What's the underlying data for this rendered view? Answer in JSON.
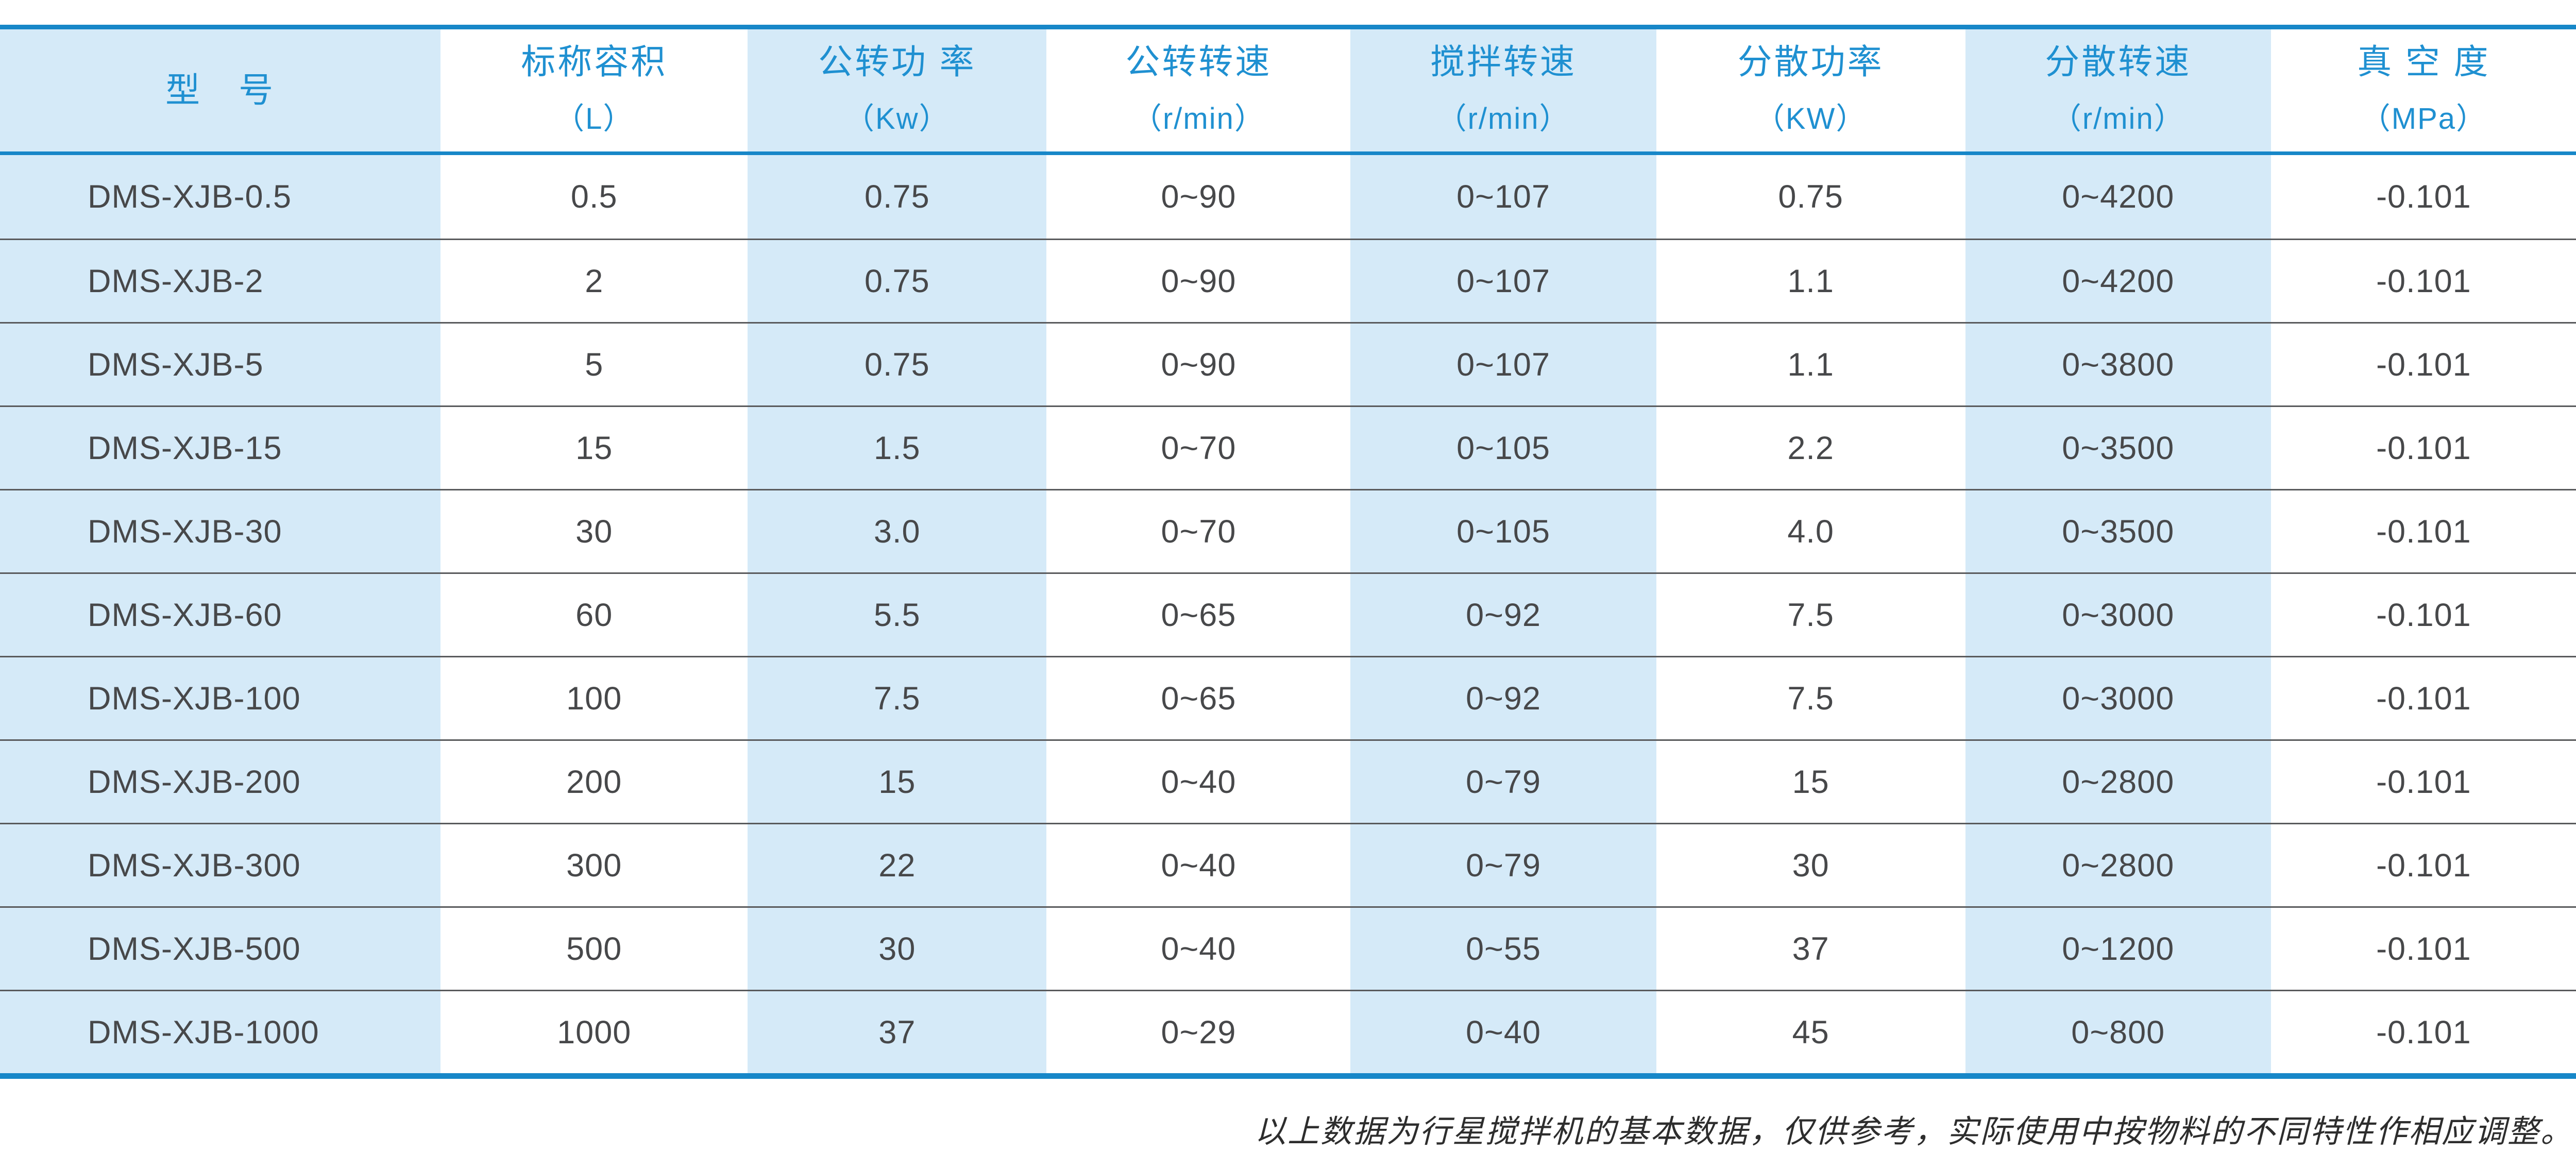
{
  "table": {
    "columns": [
      {
        "label": "型　号",
        "unit": ""
      },
      {
        "label": "标称容积",
        "unit": "（L）"
      },
      {
        "label": "公转功 率",
        "unit": "（Kw）"
      },
      {
        "label": "公转转速",
        "unit": "（r/min）"
      },
      {
        "label": "搅拌转速",
        "unit": "（r/min）"
      },
      {
        "label": "分散功率",
        "unit": "（KW）"
      },
      {
        "label": "分散转速",
        "unit": "（r/min）"
      },
      {
        "label": "真 空 度",
        "unit": "（MPa）"
      }
    ],
    "rows": [
      [
        "DMS-XJB-0.5",
        "0.5",
        "0.75",
        "0~90",
        "0~107",
        "0.75",
        "0~4200",
        "-0.101"
      ],
      [
        "DMS-XJB-2",
        "2",
        "0.75",
        "0~90",
        "0~107",
        "1.1",
        "0~4200",
        "-0.101"
      ],
      [
        "DMS-XJB-5",
        "5",
        "0.75",
        "0~90",
        "0~107",
        "1.1",
        "0~3800",
        "-0.101"
      ],
      [
        "DMS-XJB-15",
        "15",
        "1.5",
        "0~70",
        "0~105",
        "2.2",
        "0~3500",
        "-0.101"
      ],
      [
        "DMS-XJB-30",
        "30",
        "3.0",
        "0~70",
        "0~105",
        "4.0",
        "0~3500",
        "-0.101"
      ],
      [
        "DMS-XJB-60",
        "60",
        "5.5",
        "0~65",
        "0~92",
        "7.5",
        "0~3000",
        "-0.101"
      ],
      [
        "DMS-XJB-100",
        "100",
        "7.5",
        "0~65",
        "0~92",
        "7.5",
        "0~3000",
        "-0.101"
      ],
      [
        "DMS-XJB-200",
        "200",
        "15",
        "0~40",
        "0~79",
        "15",
        "0~2800",
        "-0.101"
      ],
      [
        "DMS-XJB-300",
        "300",
        "22",
        "0~40",
        "0~79",
        "30",
        "0~2800",
        "-0.101"
      ],
      [
        "DMS-XJB-500",
        "500",
        "30",
        "0~40",
        "0~55",
        "37",
        "0~1200",
        "-0.101"
      ],
      [
        "DMS-XJB-1000",
        "1000",
        "37",
        "0~29",
        "0~40",
        "45",
        "0~800",
        "-0.101"
      ]
    ],
    "footnote": "以上数据为行星搅拌机的基本数据，仅供参考，实际使用中按物料的不同特性作相应调整。"
  },
  "colors": {
    "accent_blue_line": "#1787c8",
    "header_text_blue": "#1f90d1",
    "stripe_light_blue": "#d5eaf8",
    "data_text_gray": "#47484a",
    "row_separator_gray": "#595a5c"
  }
}
